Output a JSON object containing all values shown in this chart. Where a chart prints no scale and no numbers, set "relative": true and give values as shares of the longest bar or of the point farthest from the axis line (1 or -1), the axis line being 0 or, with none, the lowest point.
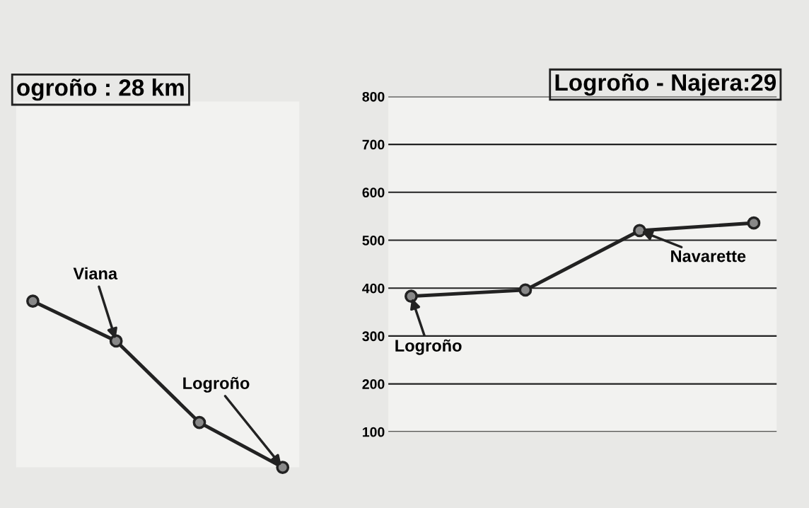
{
  "chart_data": [
    {
      "type": "line",
      "title": "ogroño : 28 km",
      "relative": true,
      "categories": [
        null,
        null,
        null,
        null
      ],
      "marker": "circle",
      "line_style": "solid",
      "tick_labels": false,
      "series": [
        {
          "color": "#222222",
          "values": [
            1,
            0.76,
            0.27,
            0
          ]
        }
      ],
      "annotations": [
        "Viana",
        "Logroño"
      ]
    },
    {
      "type": "line",
      "title": "Logroño - Najera:29",
      "categories": [
        null,
        null,
        null,
        null
      ],
      "ylim": [
        100,
        800
      ],
      "yticks": [
        100,
        200,
        300,
        400,
        500,
        600,
        700,
        800
      ],
      "grid": "y",
      "marker": "circle",
      "line_style": "solid",
      "tick_labels": "y",
      "series": [
        {
          "color": "#222222",
          "values": [
            383,
            396,
            520,
            536
          ]
        }
      ],
      "annotations": [
        "Logroño",
        "Navarette"
      ]
    }
  ]
}
